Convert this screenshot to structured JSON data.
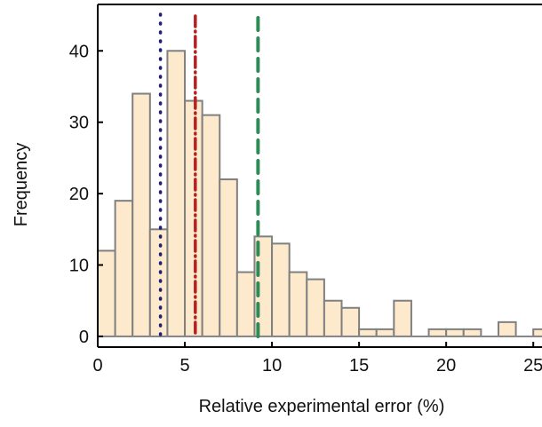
{
  "chart_data": {
    "type": "bar",
    "xlabel": "Relative experimental error (%)",
    "ylabel": "Frequency",
    "xlim": [
      0,
      25.5
    ],
    "ylim": [
      -1.5,
      46.5
    ],
    "bin_width": 1,
    "bins": [
      {
        "start": 0,
        "value": 12
      },
      {
        "start": 1,
        "value": 19
      },
      {
        "start": 2,
        "value": 34
      },
      {
        "start": 3,
        "value": 15
      },
      {
        "start": 4,
        "value": 40
      },
      {
        "start": 5,
        "value": 33
      },
      {
        "start": 6,
        "value": 31
      },
      {
        "start": 7,
        "value": 22
      },
      {
        "start": 8,
        "value": 9
      },
      {
        "start": 9,
        "value": 14
      },
      {
        "start": 10,
        "value": 13
      },
      {
        "start": 11,
        "value": 9
      },
      {
        "start": 12,
        "value": 8
      },
      {
        "start": 13,
        "value": 5
      },
      {
        "start": 14,
        "value": 4
      },
      {
        "start": 15,
        "value": 1
      },
      {
        "start": 16,
        "value": 1
      },
      {
        "start": 17,
        "value": 5
      },
      {
        "start": 18,
        "value": 0
      },
      {
        "start": 19,
        "value": 1
      },
      {
        "start": 20,
        "value": 1
      },
      {
        "start": 21,
        "value": 1
      },
      {
        "start": 22,
        "value": 0
      },
      {
        "start": 23,
        "value": 2
      },
      {
        "start": 24,
        "value": 0
      },
      {
        "start": 25,
        "value": 1
      }
    ],
    "x_ticks": [
      0,
      5,
      10,
      15,
      20,
      25
    ],
    "x_tick_labels": [
      "0",
      "5",
      "10",
      "15",
      "20",
      "25"
    ],
    "y_ticks": [
      0,
      10,
      20,
      30,
      40
    ],
    "y_tick_labels": [
      "0",
      "10",
      "20",
      "30",
      "40"
    ],
    "reference_lines": [
      {
        "x": 3.6,
        "style": "dotted",
        "color": "#1f1f7a"
      },
      {
        "x": 5.6,
        "style": "dash-dot",
        "color": "#b22222"
      },
      {
        "x": 9.2,
        "style": "dashed",
        "color": "#2e8b57"
      }
    ],
    "colors": {
      "bar_fill": "#fde9cc",
      "bar_stroke": "#808080",
      "baseline": "#888888",
      "axes": "#000000"
    },
    "grid": false
  }
}
